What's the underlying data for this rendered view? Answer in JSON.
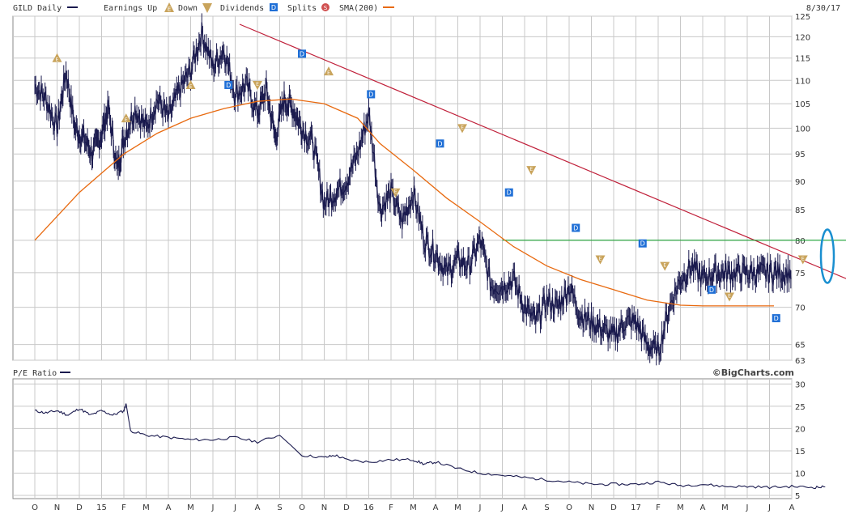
{
  "header": {
    "symbol_label": "GILD Daily",
    "earnings_label": "Earnings Up",
    "down_label": "Down",
    "dividends_label": "Dividends",
    "splits_label": "Splits",
    "sma_label": "SMA(200)",
    "date": "8/30/17",
    "glyph_up": "E",
    "glyph_div": "D",
    "glyph_split": "S"
  },
  "lower_panel": {
    "title": "P/E Ratio",
    "credit": "©BigCharts.com"
  },
  "colors": {
    "price": "#1a1a4e",
    "sma": "#e86a10",
    "trendline": "#c0203a",
    "resistance": "#18a030",
    "highlight": "#1a8fd0",
    "earnings": "#c9a45c",
    "dividend": "#1f6fd6",
    "split": "#d05050",
    "grid": "#c8c8c8"
  },
  "chart_data": [
    {
      "type": "line",
      "title": "GILD Daily",
      "y_ticks": [
        63,
        65,
        70,
        75,
        80,
        85,
        90,
        95,
        100,
        105,
        110,
        115,
        120,
        125
      ],
      "y_scale": "log",
      "ylim": [
        63,
        125
      ],
      "x_ticks": [
        "O",
        "N",
        "D",
        "15",
        "F",
        "M",
        "A",
        "M",
        "J",
        "J",
        "A",
        "S",
        "O",
        "N",
        "D",
        "16",
        "F",
        "M",
        "A",
        "M",
        "J",
        "J",
        "A",
        "S",
        "O",
        "N",
        "D",
        "17",
        "F",
        "M",
        "A",
        "M",
        "J",
        "J",
        "A"
      ],
      "grid": true,
      "series": [
        {
          "name": "GILD Daily",
          "x": [
            0,
            0.5,
            1,
            1.4,
            1.8,
            2.2,
            2.6,
            3,
            3.3,
            3.7,
            4,
            4.5,
            5,
            5.5,
            6,
            6.5,
            7,
            7.5,
            8,
            8.5,
            9,
            9.5,
            10,
            10.4,
            10.8,
            11.2,
            11.6,
            12,
            12.5,
            13,
            13.5,
            14,
            14.5,
            15,
            15.5,
            16,
            16.5,
            17,
            17.5,
            18,
            18.5,
            19,
            19.5,
            20,
            20.5,
            21,
            21.5,
            22,
            22.5,
            23,
            23.5,
            24,
            24.5,
            25,
            25.5,
            26,
            26.5,
            27,
            27.5,
            28,
            28.5,
            29,
            29.5,
            30,
            30.5,
            31,
            31.5,
            32,
            32.5,
            33,
            33.5,
            34
          ],
          "values": [
            109,
            106,
            100,
            112,
            100,
            98,
            95,
            99,
            104,
            92,
            98,
            104,
            100,
            106,
            102,
            108,
            112,
            121,
            113,
            117,
            107,
            109,
            103,
            108,
            98,
            106,
            104,
            100,
            97,
            86,
            88,
            90,
            95,
            103,
            85,
            88,
            83,
            88,
            80,
            78,
            75,
            77,
            76,
            80,
            73,
            73,
            74,
            70,
            68,
            71,
            70,
            73,
            69,
            68,
            67,
            66,
            68,
            68,
            65,
            64,
            70,
            74,
            76,
            74,
            75,
            75,
            75,
            75,
            75,
            75,
            75,
            75
          ]
        },
        {
          "name": "SMA(200)",
          "x": [
            0,
            2,
            4,
            5.5,
            7,
            8.5,
            10,
            11.5,
            13,
            14.5,
            15.5,
            17,
            18.5,
            20,
            21.5,
            23,
            24.5,
            26,
            27.5,
            29,
            30,
            31,
            32,
            33.2
          ],
          "values": [
            80,
            88,
            95,
            99,
            102,
            104,
            105.5,
            106,
            105,
            102,
            97,
            92,
            87,
            83,
            79,
            76,
            74,
            72.5,
            71,
            70.3,
            70.2,
            70.2,
            70.2,
            70.2
          ]
        }
      ],
      "annotations": [
        {
          "label": "E",
          "kind": "up",
          "x": 1.0,
          "y": 115
        },
        {
          "label": "E",
          "kind": "up",
          "x": 4.1,
          "y": 102
        },
        {
          "label": "E",
          "kind": "up",
          "x": 7.0,
          "y": 109
        },
        {
          "label": "E",
          "kind": "down",
          "x": 10.0,
          "y": 109
        },
        {
          "label": "E",
          "kind": "up",
          "x": 13.2,
          "y": 112
        },
        {
          "label": "E",
          "kind": "down",
          "x": 16.2,
          "y": 88
        },
        {
          "label": "E",
          "kind": "down",
          "x": 19.2,
          "y": 100
        },
        {
          "label": "E",
          "kind": "down",
          "x": 22.3,
          "y": 92
        },
        {
          "label": "E",
          "kind": "down",
          "x": 25.4,
          "y": 77
        },
        {
          "label": "E",
          "kind": "down",
          "x": 28.3,
          "y": 76
        },
        {
          "label": "E",
          "kind": "down",
          "x": 31.2,
          "y": 71.5
        },
        {
          "label": "E",
          "kind": "down",
          "x": 34.5,
          "y": 77
        },
        {
          "label": "D",
          "kind": "dividend",
          "x": 8.7,
          "y": 109
        },
        {
          "label": "D",
          "kind": "dividend",
          "x": 12.0,
          "y": 116
        },
        {
          "label": "D",
          "kind": "dividend",
          "x": 15.1,
          "y": 107
        },
        {
          "label": "D",
          "kind": "dividend",
          "x": 18.2,
          "y": 97
        },
        {
          "label": "D",
          "kind": "dividend",
          "x": 21.3,
          "y": 88
        },
        {
          "label": "D",
          "kind": "dividend",
          "x": 24.3,
          "y": 82
        },
        {
          "label": "D",
          "kind": "dividend",
          "x": 27.3,
          "y": 79.5
        },
        {
          "label": "D",
          "kind": "dividend",
          "x": 30.4,
          "y": 72.5
        },
        {
          "label": "D",
          "kind": "dividend",
          "x": 33.3,
          "y": 68.5
        }
      ],
      "overlays": {
        "trendline": [
          [
            9.2,
            123
          ],
          [
            38,
            72
          ]
        ],
        "resistance": {
          "y": 80,
          "x_start": 21.0
        },
        "highlight": {
          "x": 35.6,
          "y": 77.5
        }
      }
    },
    {
      "type": "line",
      "title": "P/E Ratio",
      "y_ticks": [
        5,
        10,
        15,
        20,
        25,
        30
      ],
      "ylim": [
        5,
        30
      ],
      "grid": true,
      "series": [
        {
          "name": "P/E Ratio",
          "x": [
            0,
            0.5,
            1,
            1.5,
            2,
            2.5,
            3,
            3.5,
            4,
            4.1,
            4.3,
            5,
            6,
            7,
            8,
            9,
            10,
            11,
            12,
            13,
            13.5,
            14,
            15,
            16,
            17,
            17.5,
            18,
            19,
            20,
            21,
            22,
            23,
            24,
            25,
            26,
            27,
            28,
            29,
            30,
            31,
            32,
            33,
            34,
            35,
            35.5
          ],
          "values": [
            24,
            23.5,
            24,
            23,
            24.5,
            23,
            24,
            23,
            24,
            25.5,
            19.5,
            18.5,
            18,
            17.5,
            17.5,
            18,
            17,
            18.5,
            14,
            13.5,
            14,
            13,
            12.5,
            13,
            13,
            12,
            12.5,
            11,
            10,
            9.5,
            9,
            8.5,
            8,
            7.5,
            7.5,
            7.5,
            8,
            7.2,
            7.5,
            7,
            7,
            6.8,
            7,
            6.8,
            6.9
          ]
        }
      ]
    }
  ]
}
